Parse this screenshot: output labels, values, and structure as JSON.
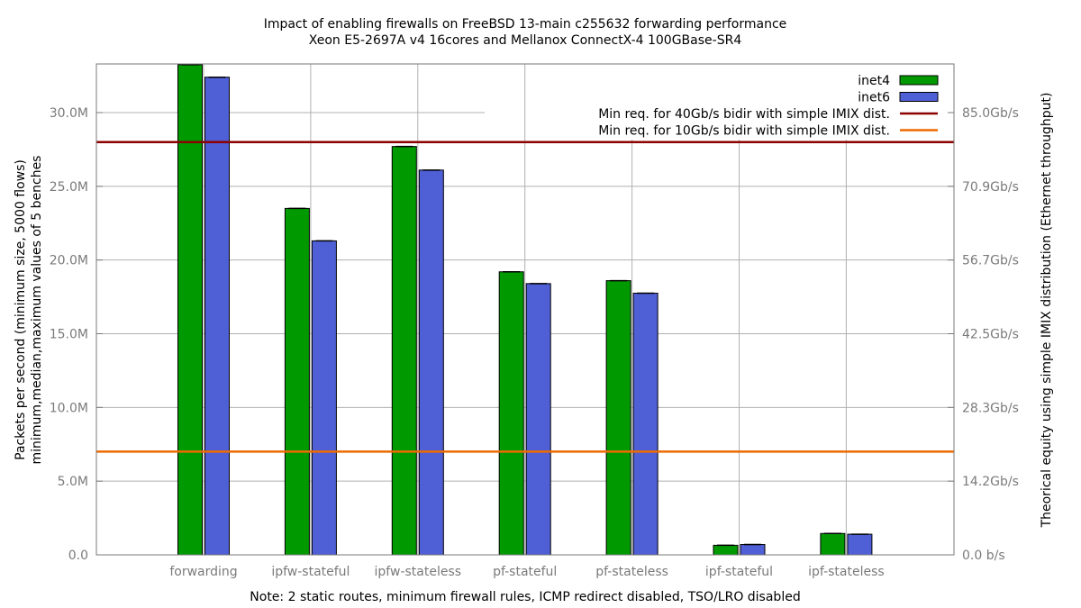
{
  "chart_data": {
    "type": "bar",
    "title": "Impact of enabling firewalls on FreeBSD 13-main c255632 forwarding performance",
    "subtitle": "Xeon E5-2697A v4 16cores and Mellanox ConnectX-4 100GBase-SR4",
    "ylabel_line1": "Packets per second (minimum size, 5000 flows)",
    "ylabel_line2": "minimum,median,maximum values of 5 benches",
    "y2label": "Theorical equity using simple IMIX distribution (Ethernet throughput)",
    "xlabel": "Note: 2 static routes, minimum firewall rules, ICMP redirect disabled, TSO/LRO disabled",
    "ylim": [
      0,
      33300000
    ],
    "yticks": [
      {
        "value": 0,
        "label": "0.0"
      },
      {
        "value": 5000000,
        "label": "5.0M"
      },
      {
        "value": 10000000,
        "label": "10.0M"
      },
      {
        "value": 15000000,
        "label": "15.0M"
      },
      {
        "value": 20000000,
        "label": "20.0M"
      },
      {
        "value": 25000000,
        "label": "25.0M"
      },
      {
        "value": 30000000,
        "label": "30.0M"
      }
    ],
    "y2ticks": [
      {
        "value": 0,
        "label": "0.0 b/s"
      },
      {
        "value": 5000000,
        "label": "14.2Gb/s"
      },
      {
        "value": 10000000,
        "label": "28.3Gb/s"
      },
      {
        "value": 15000000,
        "label": "42.5Gb/s"
      },
      {
        "value": 20000000,
        "label": "56.7Gb/s"
      },
      {
        "value": 25000000,
        "label": "70.9Gb/s"
      },
      {
        "value": 30000000,
        "label": "85.0Gb/s"
      }
    ],
    "categories": [
      "forwarding",
      "ipfw-stateful",
      "ipfw-stateless",
      "pf-stateful",
      "pf-stateless",
      "ipf-stateful",
      "ipf-stateless"
    ],
    "series": [
      {
        "name": "inet4",
        "color": "#009900",
        "values": [
          33250000,
          23500000,
          27700000,
          19200000,
          18600000,
          650000,
          1450000
        ]
      },
      {
        "name": "inet6",
        "color": "#4f5fd5",
        "values": [
          32400000,
          21300000,
          26100000,
          18400000,
          17750000,
          700000,
          1400000
        ]
      }
    ],
    "reference_lines": [
      {
        "name": "Min req. for 40Gb/s bidir with simple IMIX dist.",
        "value": 28000000,
        "color": "#8b0000"
      },
      {
        "name": "Min req. for 10Gb/s bidir with simple IMIX dist.",
        "value": 7000000,
        "color": "#ee6a00"
      }
    ],
    "legend_position": "top-right",
    "grid": true
  }
}
